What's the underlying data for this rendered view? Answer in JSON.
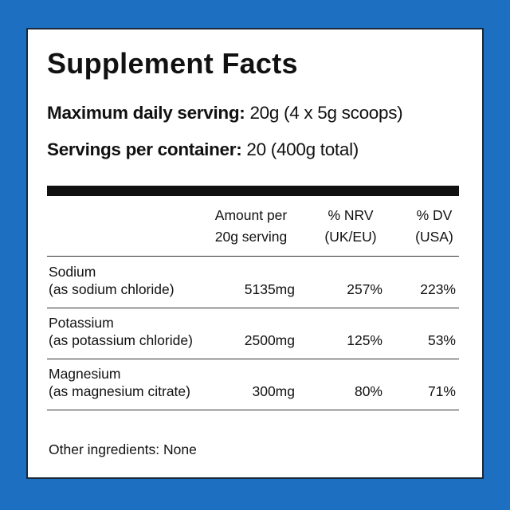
{
  "title": "Supplement Facts",
  "serving": [
    {
      "label": "Maximum daily serving:",
      "value": "20g (4 x 5g scoops)"
    },
    {
      "label": "Servings per container:",
      "value": "20 (400g total)"
    }
  ],
  "table": {
    "header": [
      [
        "Amount per",
        "20g serving"
      ],
      [
        "% NRV",
        "(UK/EU)"
      ],
      [
        "% DV",
        "(USA)"
      ]
    ],
    "rows": [
      {
        "name": [
          "Sodium",
          "(as sodium chloride)"
        ],
        "amount": "5135mg",
        "nrv": "257%",
        "dv": "223%"
      },
      {
        "name": [
          "Potassium",
          "(as potassium chloride)"
        ],
        "amount": "2500mg",
        "nrv": "125%",
        "dv": "53%"
      },
      {
        "name": [
          "Magnesium",
          "(as magnesium citrate)"
        ],
        "amount": "300mg",
        "nrv": "80%",
        "dv": "71%"
      }
    ]
  },
  "footer": "Other ingredients: None"
}
